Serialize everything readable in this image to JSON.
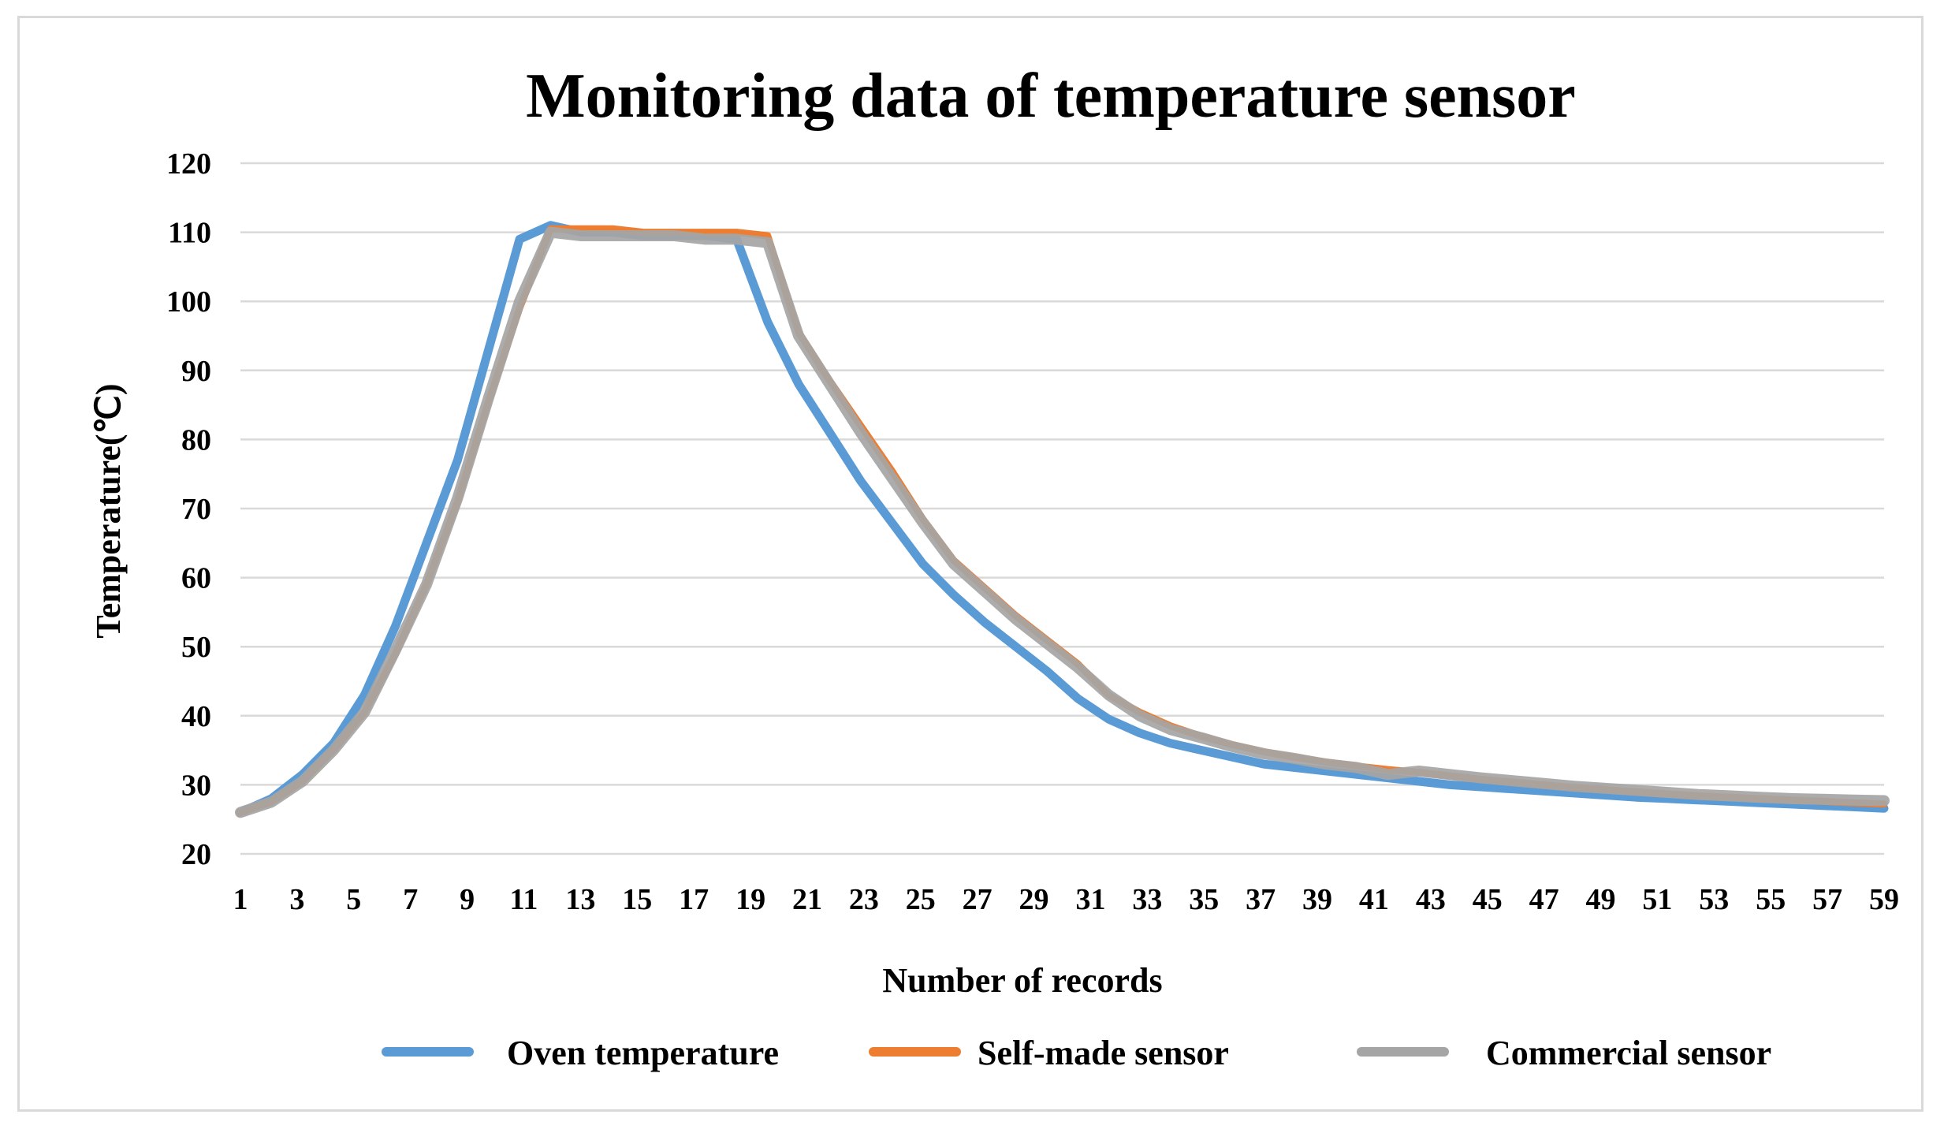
{
  "chart_data": {
    "type": "line",
    "title": "Monitoring data of temperature sensor",
    "xlabel": "Number of records",
    "ylabel": "Temperature(℃)",
    "ylim": [
      20,
      120
    ],
    "yticks": [
      20,
      30,
      40,
      50,
      60,
      70,
      80,
      90,
      100,
      110,
      120
    ],
    "xlim": [
      1,
      59
    ],
    "xticks": [
      1,
      3,
      5,
      7,
      9,
      11,
      13,
      15,
      17,
      19,
      21,
      23,
      25,
      27,
      29,
      31,
      33,
      35,
      37,
      39,
      41,
      43,
      45,
      47,
      49,
      51,
      53,
      55,
      57,
      59
    ],
    "grid": true,
    "legend_position": "bottom",
    "series": [
      {
        "name": "Oven temperature",
        "color": "#5b9bd5",
        "values": [
          26,
          28,
          31.5,
          36,
          43,
          53,
          65,
          77,
          93,
          109,
          111,
          110,
          110,
          109.5,
          109.5,
          109.5,
          109,
          97,
          88,
          81,
          74,
          68,
          62,
          57.5,
          53.5,
          50,
          46.5,
          42.5,
          39.5,
          37.5,
          36,
          35,
          34,
          33,
          32.5,
          32,
          31.5,
          31,
          30.5,
          30,
          29.7,
          29.4,
          29.1,
          28.8,
          28.5,
          28.2,
          28,
          27.8,
          27.6,
          27.4,
          27.2,
          27,
          26.8,
          26.6
        ]
      },
      {
        "name": "Self-made sensor",
        "color": "#ed7d31",
        "values": [
          26,
          27.5,
          30.5,
          35,
          40.5,
          49,
          59,
          71,
          85.5,
          99,
          110.5,
          110.5,
          110.5,
          110,
          110,
          110,
          110,
          109.5,
          95.5,
          88.5,
          82,
          75.5,
          68.5,
          62.5,
          58.5,
          54.5,
          51,
          47.5,
          43,
          40.5,
          38.5,
          37,
          35.8,
          34.8,
          34,
          33.3,
          32.7,
          32.2,
          31.8,
          31.3,
          30.8,
          30.4,
          30,
          29.6,
          29.3,
          29,
          28.7,
          28.4,
          28.2,
          28,
          27.8,
          27.6,
          27.4,
          27.2
        ]
      },
      {
        "name": "Commercial sensor",
        "color": "#a5a5a5",
        "values": [
          26,
          27.5,
          30.5,
          35,
          40.5,
          49.5,
          59,
          71.5,
          86,
          100,
          110,
          109.5,
          109.5,
          109.5,
          109.5,
          109,
          109,
          108.5,
          95,
          88,
          81,
          74.5,
          68,
          62,
          58,
          54,
          50.5,
          47,
          43,
          40,
          38,
          36.8,
          35.5,
          34.5,
          33.8,
          33,
          32.5,
          31.5,
          32,
          31.5,
          31,
          30.6,
          30.2,
          29.8,
          29.5,
          29.2,
          28.9,
          28.6,
          28.4,
          28.2,
          28,
          27.9,
          27.8,
          27.7
        ]
      }
    ]
  }
}
